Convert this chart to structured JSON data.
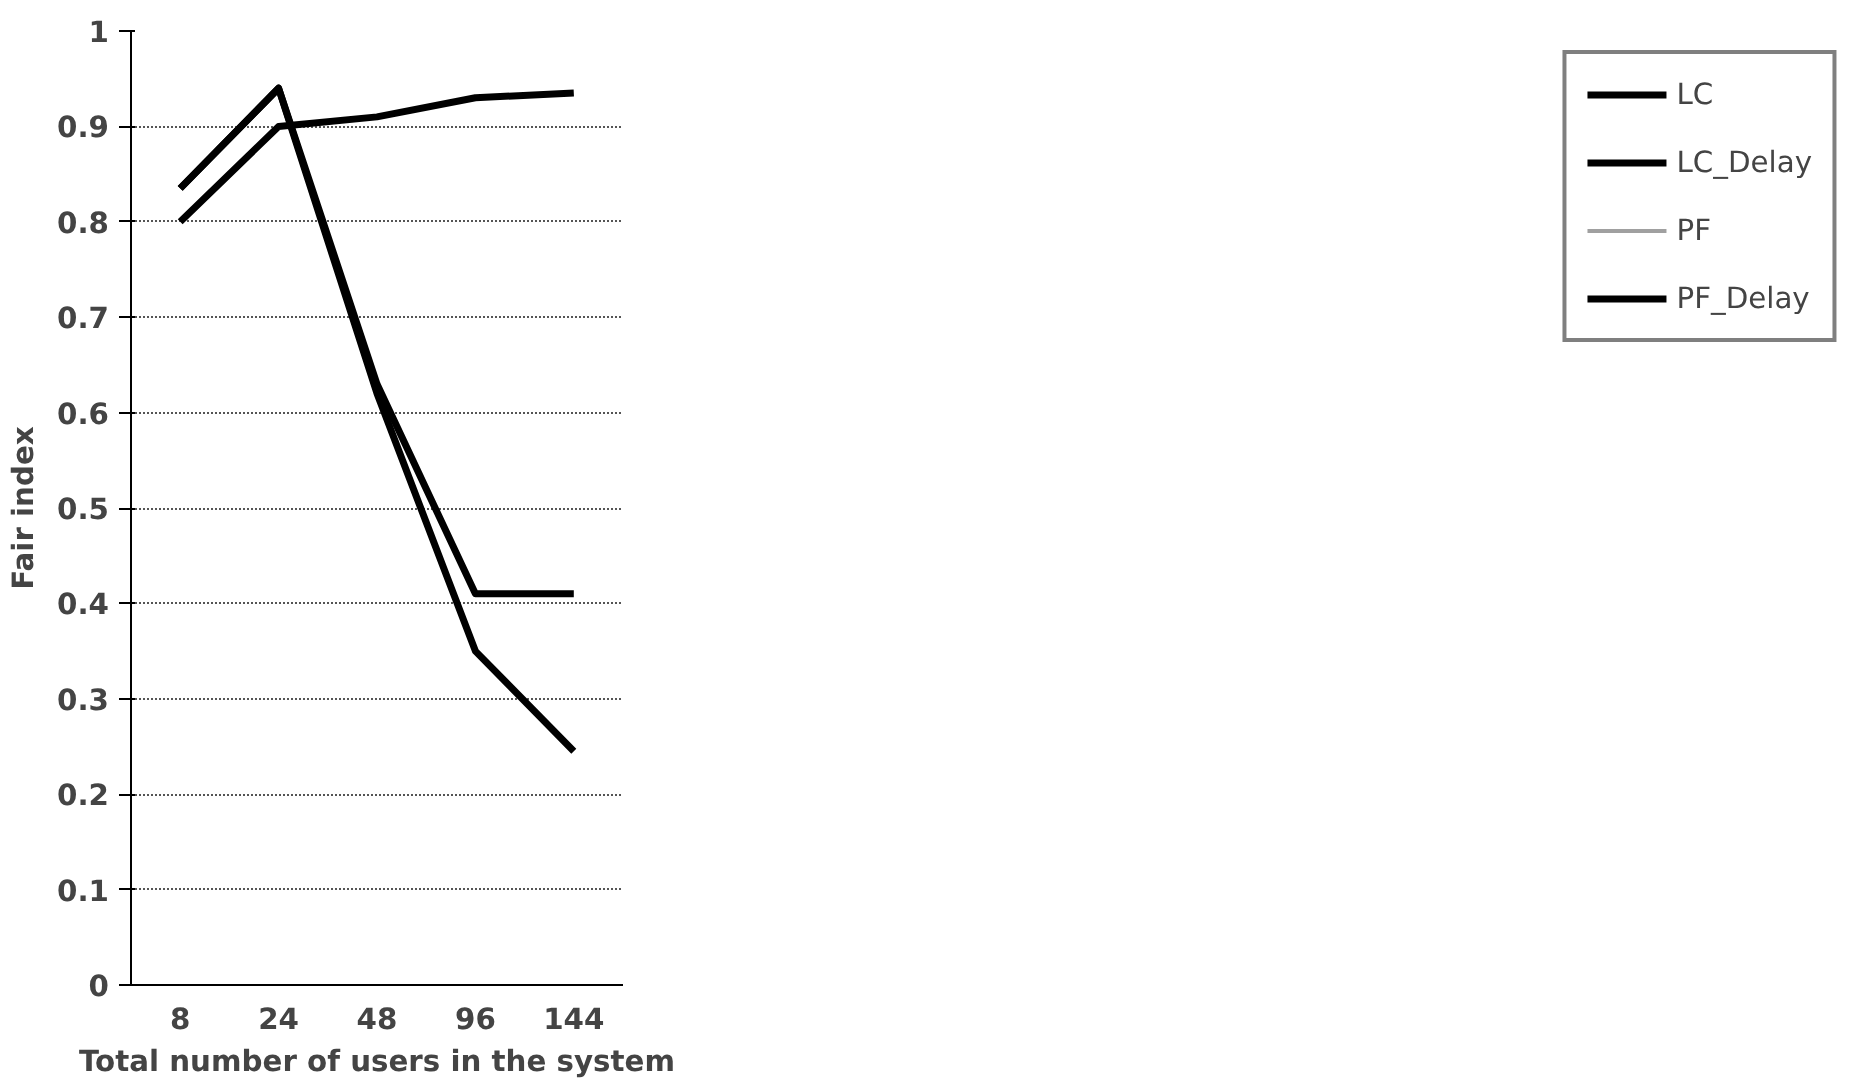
{
  "chart_data": {
    "type": "line",
    "xlabel": "Total number of users in the system",
    "ylabel": "Fair index",
    "categories": [
      "8",
      "24",
      "48",
      "96",
      "144"
    ],
    "series": [
      {
        "name": "LC",
        "color": "#000000",
        "values": [
          0.835,
          0.94,
          0.62,
          0.35,
          0.245
        ]
      },
      {
        "name": "LC_Delay",
        "color": "#000000",
        "values": [
          0.835,
          0.94,
          0.63,
          0.41,
          0.41
        ]
      },
      {
        "name": "PF",
        "color": "#a0a0a0",
        "values": [
          null,
          null,
          null,
          null,
          null
        ]
      },
      {
        "name": "PF_Delay",
        "color": "#000000",
        "values": [
          0.8,
          0.9,
          0.91,
          0.93,
          0.935
        ]
      }
    ],
    "ylim": [
      0,
      1
    ],
    "yticks": [
      0,
      0.1,
      0.2,
      0.3,
      0.4,
      0.5,
      0.6,
      0.7,
      0.8,
      0.9,
      1
    ],
    "grid": "y",
    "legend": "right",
    "marker": "none",
    "line_style": "solid"
  }
}
